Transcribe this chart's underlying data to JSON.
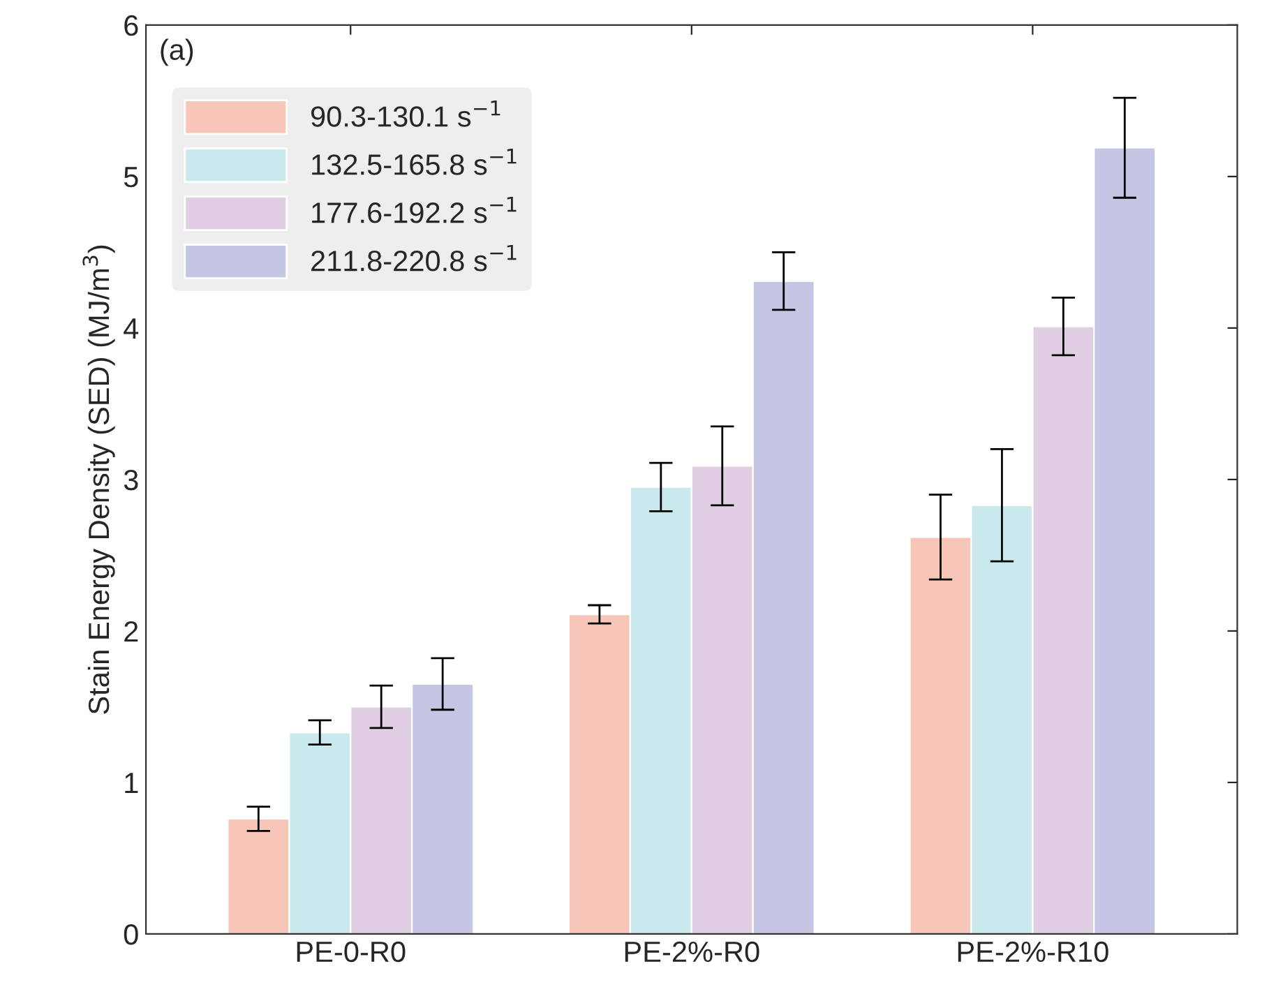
{
  "chart_data": {
    "type": "bar",
    "ylabel": "Stain Energy Density (SED) (MJ/m$^{3}$)",
    "categories": [
      "PE-0-R0",
      "PE-2%-R0",
      "PE-2%-R10"
    ],
    "series": [
      {
        "name": "90.3-130.1 s$^{−1}$",
        "color": "#f7c6b9",
        "values": [
          0.76,
          2.11,
          2.62
        ],
        "errors": [
          0.08,
          0.06,
          0.28
        ]
      },
      {
        "name": "132.5-165.8 s$^{−1}$",
        "color": "#cae9ec",
        "values": [
          1.33,
          2.95,
          2.83
        ],
        "errors": [
          0.08,
          0.16,
          0.37
        ]
      },
      {
        "name": "177.6-192.2 s$^{−1}$",
        "color": "#e0cfe3",
        "values": [
          1.5,
          3.09,
          4.01
        ],
        "errors": [
          0.14,
          0.26,
          0.19
        ]
      },
      {
        "name": "211.8-220.8 s$^{−1}$",
        "color": "#c4c6e3",
        "values": [
          1.65,
          4.31,
          5.19
        ],
        "errors": [
          0.17,
          0.19,
          0.33
        ]
      }
    ],
    "annotations": [
      "(a)"
    ],
    "ylim": [
      0,
      6
    ],
    "yticks": [
      0,
      1,
      2,
      3,
      4,
      5,
      6
    ],
    "grid": false,
    "legend": "top left"
  }
}
